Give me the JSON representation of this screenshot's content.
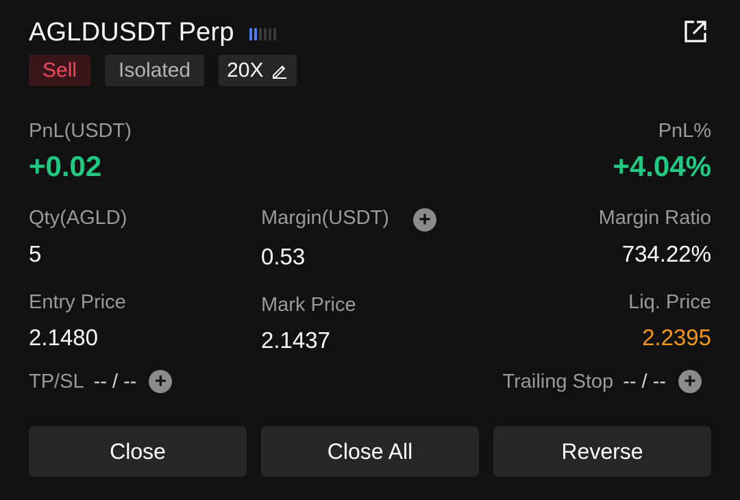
{
  "header": {
    "symbol_title": "AGLDUSDT Perp",
    "signal_level": 2,
    "signal_total": 6,
    "accent_color": "#4a7cf0"
  },
  "tags": {
    "side": "Sell",
    "margin_mode": "Isolated",
    "leverage": "20X"
  },
  "pnl": {
    "label": "PnL(USDT)",
    "value": "+0.02",
    "pct_label": "PnL%",
    "pct_value": "+4.04%",
    "color": "#20c982"
  },
  "metrics": {
    "qty_label": "Qty(AGLD)",
    "qty_value": "5",
    "margin_label": "Margin(USDT)",
    "margin_value": "0.53",
    "margin_ratio_label": "Margin Ratio",
    "margin_ratio_value": "734.22%",
    "entry_label": "Entry Price",
    "entry_value": "2.1480",
    "mark_label": "Mark Price",
    "mark_value": "2.1437",
    "liq_label": "Liq. Price",
    "liq_value": "2.2395",
    "liq_color": "#f7951d"
  },
  "orders": {
    "tpsl_label": "TP/SL",
    "tpsl_value": "-- / --",
    "trailing_label": "Trailing Stop",
    "trailing_value": "-- / --"
  },
  "actions": {
    "close": "Close",
    "close_all": "Close All",
    "reverse": "Reverse"
  },
  "icons": {
    "share": "external-link-icon",
    "edit": "pencil-icon",
    "add": "plus-circle-icon",
    "signal": "signal-bars-icon"
  }
}
